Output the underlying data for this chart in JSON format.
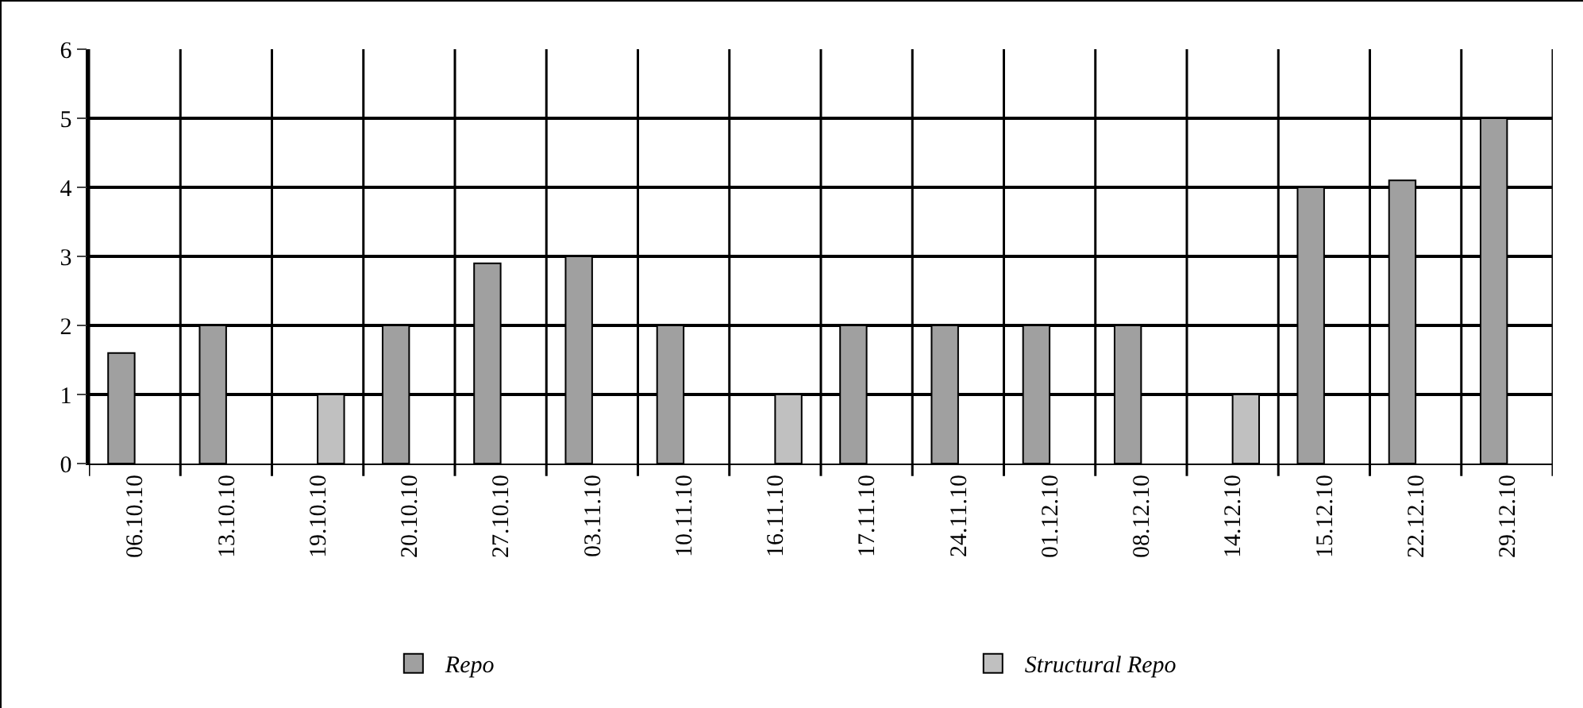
{
  "chart_data": {
    "type": "bar",
    "categories": [
      "06.10.10",
      "13.10.10",
      "19.10.10",
      "20.10.10",
      "27.10.10",
      "03.11.10",
      "10.11.10",
      "16.11.10",
      "17.11.10",
      "24.11.10",
      "01.12.10",
      "08.12.10",
      "14.12.10",
      "15.12.10",
      "22.12.10",
      "29.12.10"
    ],
    "series": [
      {
        "name": "Repo",
        "color": "#a0a0a0",
        "values": [
          1.6,
          2,
          null,
          2,
          2.9,
          3,
          2,
          null,
          2,
          2,
          2,
          2,
          null,
          4,
          4.1,
          5
        ]
      },
      {
        "name": "Structural Repo",
        "color": "#c0c0c0",
        "values": [
          null,
          null,
          1,
          null,
          null,
          null,
          null,
          1,
          null,
          null,
          null,
          null,
          1,
          null,
          null,
          null
        ]
      }
    ],
    "ylim": [
      0,
      6
    ],
    "yticks": [
      0,
      1,
      2,
      3,
      4,
      5,
      6
    ],
    "grid": true,
    "legend": "bottom"
  }
}
